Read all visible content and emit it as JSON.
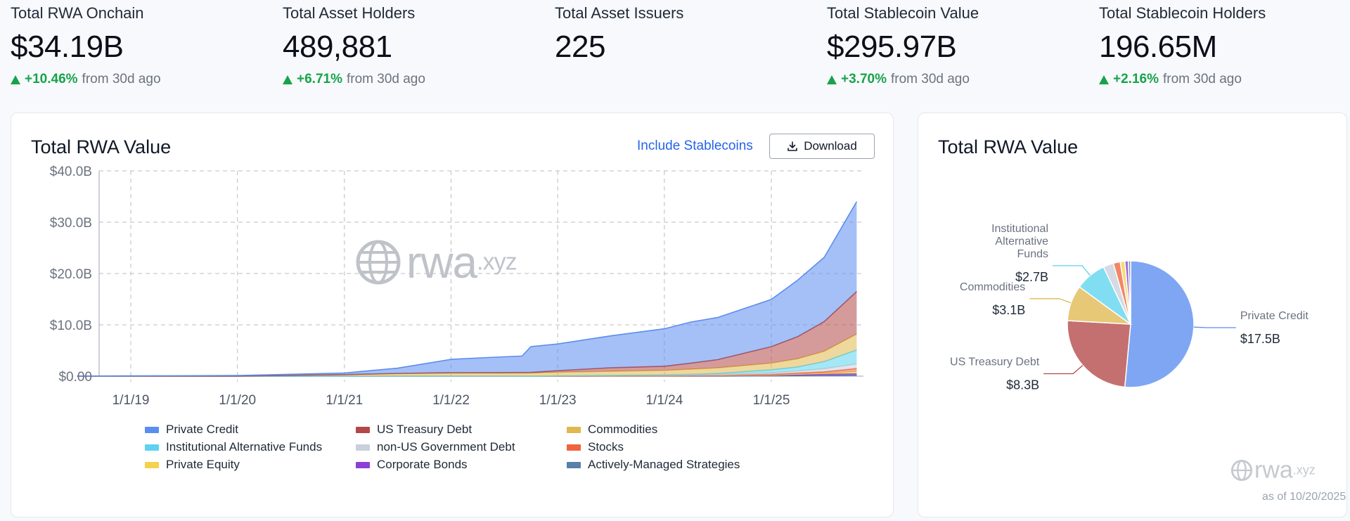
{
  "stats": [
    {
      "label": "Total RWA Onchain",
      "value": "$34.19B",
      "change": "+10.46%",
      "suffix": "from 30d ago"
    },
    {
      "label": "Total Asset Holders",
      "value": "489,881",
      "change": "+6.71%",
      "suffix": "from 30d ago"
    },
    {
      "label": "Total Asset Issuers",
      "value": "225",
      "change": "",
      "suffix": ""
    },
    {
      "label": "Total Stablecoin Value",
      "value": "$295.97B",
      "change": "+3.70%",
      "suffix": "from 30d ago"
    },
    {
      "label": "Total Stablecoin Holders",
      "value": "196.65M",
      "change": "+2.16%",
      "suffix": "from 30d ago"
    }
  ],
  "left_card": {
    "title": "Total RWA Value",
    "include_stablecoins": "Include Stablecoins",
    "download": "Download",
    "download_icon": "download-icon"
  },
  "right_card": {
    "title": "Total RWA Value",
    "as_of": "as of 10/20/2025"
  },
  "watermark": {
    "main": "rwa",
    "suffix": ".xyz"
  },
  "colors": {
    "private_credit": "#5b8def",
    "us_treasury": "#b34848",
    "commodities": "#e0b84f",
    "inst_alt_funds": "#5dd3ee",
    "non_us_gov": "#c9cfdc",
    "stocks": "#f0643c",
    "private_equity": "#f4d24e",
    "corporate_bonds": "#8b3fd6",
    "active_strategies": "#5a7fa8",
    "positive": "#16a34a",
    "accent": "#2563eb"
  },
  "chart_data": [
    {
      "type": "area",
      "title": "Total RWA Value",
      "xlabel": "",
      "ylabel": "",
      "x_ticks": [
        "1/1/19",
        "1/1/20",
        "1/1/21",
        "1/1/22",
        "1/1/23",
        "1/1/24",
        "1/1/25"
      ],
      "y_ticks": [
        "$0.00",
        "$10.0B",
        "$20.0B",
        "$30.0B",
        "$40.0B"
      ],
      "ylim": [
        0,
        40
      ],
      "grid": true,
      "legend_position": "bottom",
      "x": [
        "2018-07-01",
        "2019-01-01",
        "2020-01-01",
        "2021-01-01",
        "2021-07-01",
        "2022-01-01",
        "2022-06-01",
        "2022-09-01",
        "2022-10-01",
        "2023-01-01",
        "2023-07-01",
        "2024-01-01",
        "2024-04-01",
        "2024-07-01",
        "2025-01-01",
        "2025-04-01",
        "2025-07-01",
        "2025-10-20"
      ],
      "series": [
        {
          "name": "Private Credit",
          "values": [
            0.02,
            0.05,
            0.1,
            0.3,
            1.0,
            2.6,
            3.0,
            3.2,
            5.0,
            5.2,
            6.2,
            7.3,
            8.0,
            8.2,
            9.2,
            11.0,
            12.5,
            17.5
          ]
        },
        {
          "name": "US Treasury Debt",
          "values": [
            0,
            0,
            0,
            0.02,
            0.05,
            0.08,
            0.1,
            0.12,
            0.15,
            0.3,
            0.7,
            0.8,
            1.2,
            1.6,
            3.2,
            4.3,
            5.8,
            8.3
          ]
        },
        {
          "name": "Commodities",
          "values": [
            0,
            0.01,
            0.02,
            0.3,
            0.5,
            0.6,
            0.6,
            0.6,
            0.6,
            0.7,
            0.8,
            0.9,
            1.0,
            1.1,
            1.3,
            1.6,
            2.0,
            3.1
          ]
        },
        {
          "name": "Institutional Alternative Funds",
          "values": [
            0,
            0,
            0,
            0,
            0,
            0,
            0,
            0,
            0,
            0,
            0,
            0.05,
            0.1,
            0.2,
            0.6,
            0.8,
            1.4,
            2.7
          ]
        },
        {
          "name": "non-US Government Debt",
          "values": [
            0,
            0,
            0,
            0,
            0,
            0,
            0,
            0,
            0,
            0.05,
            0.1,
            0.1,
            0.15,
            0.2,
            0.3,
            0.4,
            0.6,
            0.9
          ]
        },
        {
          "name": "Stocks",
          "values": [
            0,
            0,
            0,
            0,
            0,
            0,
            0,
            0,
            0,
            0,
            0,
            0,
            0,
            0.02,
            0.1,
            0.2,
            0.3,
            0.6
          ]
        },
        {
          "name": "Private Equity",
          "values": [
            0,
            0,
            0,
            0,
            0,
            0,
            0,
            0,
            0,
            0,
            0,
            0,
            0,
            0,
            0.05,
            0.1,
            0.15,
            0.4
          ]
        },
        {
          "name": "Corporate Bonds",
          "values": [
            0,
            0,
            0,
            0,
            0,
            0,
            0,
            0,
            0,
            0.02,
            0.05,
            0.08,
            0.1,
            0.1,
            0.15,
            0.2,
            0.25,
            0.3
          ]
        },
        {
          "name": "Actively-Managed Strategies",
          "values": [
            0,
            0,
            0,
            0,
            0,
            0,
            0,
            0,
            0,
            0,
            0,
            0,
            0,
            0,
            0.05,
            0.1,
            0.15,
            0.2
          ]
        }
      ]
    },
    {
      "type": "pie",
      "title": "Total RWA Value",
      "slices": [
        {
          "name": "Private Credit",
          "value": 17.5,
          "label": "Private Credit",
          "value_label": "$17.5B",
          "labeled": true
        },
        {
          "name": "US Treasury Debt",
          "value": 8.3,
          "label": "US Treasury Debt",
          "value_label": "$8.3B",
          "labeled": true
        },
        {
          "name": "Commodities",
          "value": 3.1,
          "label": "Commodities",
          "value_label": "$3.1B",
          "labeled": true
        },
        {
          "name": "Institutional Alternative Funds",
          "value": 2.7,
          "label": "Institutional Alternative Funds",
          "label_lines": [
            "Institutional",
            "Alternative",
            "Funds"
          ],
          "value_label": "$2.7B",
          "labeled": true
        },
        {
          "name": "non-US Government Debt",
          "value": 0.9,
          "labeled": false
        },
        {
          "name": "Stocks",
          "value": 0.6,
          "labeled": false
        },
        {
          "name": "Private Equity",
          "value": 0.4,
          "labeled": false
        },
        {
          "name": "Corporate Bonds",
          "value": 0.3,
          "labeled": false
        },
        {
          "name": "Actively-Managed Strategies",
          "value": 0.2,
          "labeled": false
        }
      ]
    }
  ]
}
